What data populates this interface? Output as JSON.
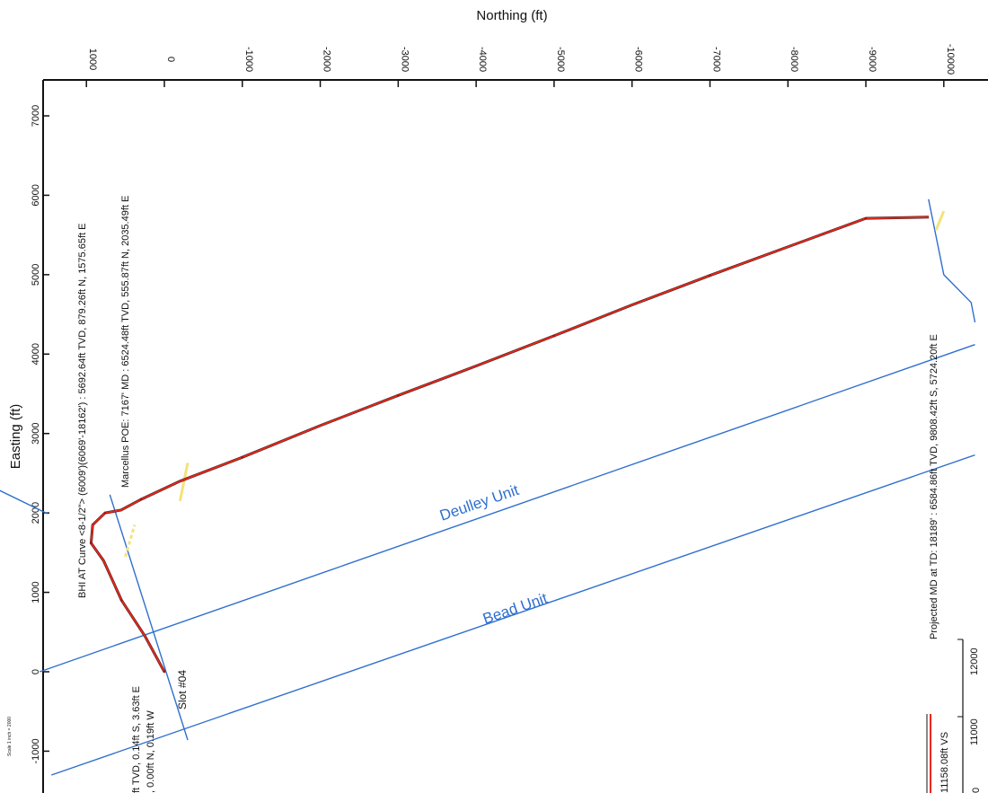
{
  "chart_data": {
    "type": "line",
    "title": "",
    "xlabel": "Northing (ft)",
    "ylabel": "Easting (ft)",
    "x_ticks": [
      1000,
      0,
      -1000,
      -2000,
      -3000,
      -4000,
      -5000,
      -6000,
      -7000,
      -8000,
      -9000,
      -10000
    ],
    "y_ticks": [
      7000,
      6000,
      5000,
      4000,
      3000,
      2000,
      1000,
      0,
      -1000
    ],
    "x_range": [
      1990,
      -10700
    ],
    "y_range": [
      7500,
      -1500
    ],
    "grid": false,
    "series": [
      {
        "name": "",
        "color": "#e8261a",
        "points": [
          [
            0,
            0
          ],
          [
            250,
            450
          ],
          [
            550,
            900
          ],
          [
            780,
            1400
          ],
          [
            940,
            1620
          ],
          [
            920,
            1850
          ],
          [
            760,
            2000
          ],
          [
            556,
            2035
          ],
          [
            300,
            2170
          ],
          [
            -200,
            2400
          ],
          [
            -1000,
            2700
          ],
          [
            -2000,
            3100
          ],
          [
            -3000,
            3480
          ],
          [
            -4000,
            3850
          ],
          [
            -5000,
            4230
          ],
          [
            -6000,
            4620
          ],
          [
            -7000,
            4990
          ],
          [
            -8000,
            5350
          ],
          [
            -9000,
            5710
          ],
          [
            -9808,
            5724
          ]
        ]
      }
    ],
    "lines": [
      {
        "name": "",
        "color": "#2f6fcf",
        "points": [
          [
            1500,
            1990
          ],
          [
            9804,
            5950
          ]
        ]
      },
      {
        "name": "",
        "color": "#2f6fcf",
        "points": [
          [
            1600,
            0
          ],
          [
            -10400,
            4120
          ]
        ]
      },
      {
        "name": "",
        "color": "#2f6fcf",
        "points": [
          [
            1450,
            -1300
          ],
          [
            -10400,
            2730
          ]
        ]
      },
      {
        "name": "",
        "color": "#2f6fcf",
        "points": [
          [
            700,
            2230
          ],
          [
            -300,
            -860
          ]
        ]
      },
      {
        "name": "",
        "color": "#2f6fcf",
        "points": [
          [
            -9804,
            5950
          ],
          [
            -10000,
            5000
          ],
          [
            -10350,
            4650
          ],
          [
            -10400,
            4400
          ]
        ]
      }
    ],
    "markers": [
      {
        "name": "yellow",
        "color": "#f3e37a",
        "points": [
          [
            -200,
            2150
          ],
          [
            -300,
            2630
          ]
        ]
      },
      {
        "name": "yellow-dashed",
        "color": "#f3e37a",
        "points": [
          [
            500,
            1450
          ],
          [
            380,
            1850
          ]
        ]
      },
      {
        "name": "yellow-end",
        "color": "#f3e37a",
        "points": [
          [
            -9900,
            5560
          ],
          [
            -10000,
            5800
          ]
        ]
      }
    ],
    "annotations": {
      "bhi": "BHI AT Curve <8-1/2\"> (6009')(6069'-18162') : 5692.64ft TVD, 879.26ft N, 1575.65ft E",
      "marcellus": "Marcellus POE: 7167' MD : 6524.48ft TVD, 555.87ft N, 2035.49ft E",
      "projected": "Projected MD at TD: 18189' : 6584.86ft TVD, 9808.42ft S, 5724.20ft E",
      "origin1": "ft TVD, 0.14ft S, 3.63ft E",
      "origin2": ", 0.00ft N, 0.19ft W",
      "slot": "Slot #04",
      "deulley": "Deulley Unit",
      "bead": "Bead Unit",
      "vs": "11158.08ft VS",
      "scale": "Scale 1 inch = 2000",
      "inset_ticks": [
        "12000",
        "11000",
        "0"
      ]
    }
  }
}
